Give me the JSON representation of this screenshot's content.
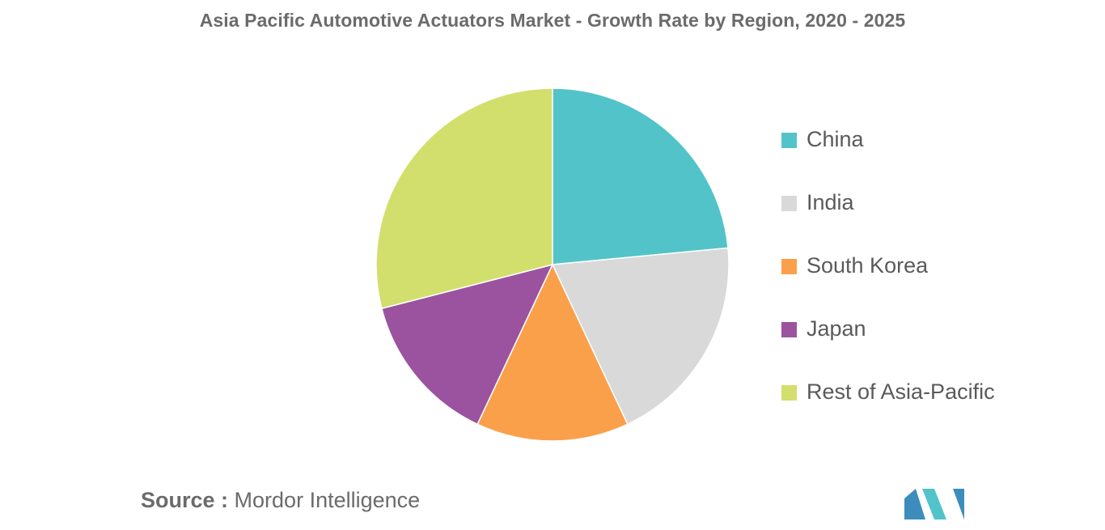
{
  "chart_data": {
    "type": "pie",
    "title": "Asia Pacific Automotive Actuators Market - Growth Rate by Region, 2020 - 2025",
    "categories": [
      "China",
      "India",
      "South Korea",
      "Japan",
      "Rest of Asia-Pacific"
    ],
    "values": [
      23.5,
      19.5,
      14.0,
      14.0,
      29.0
    ],
    "colors": [
      "#52c4c9",
      "#d9d9d9",
      "#fba04a",
      "#9b529f",
      "#d2df6c"
    ],
    "start_angle_deg": 0,
    "direction": "clockwise",
    "legend_position": "right"
  },
  "source": {
    "label": "Source :",
    "text": "Mordor Intelligence"
  },
  "logo": {
    "name": "mordor-intelligence-logo",
    "colors": [
      "#3c8dbc",
      "#52c4c9"
    ]
  }
}
